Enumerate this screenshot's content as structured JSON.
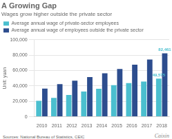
{
  "chart_data": {
    "type": "bar",
    "title": "A Growing Gap",
    "subtitle": "Wages grow higher outside the private sector",
    "ylabel": "Unit: yuan",
    "source": "Sources: National Bureau of Statistics, CEIC",
    "watermark": "Caixin",
    "categories": [
      "2010",
      "2011",
      "2012",
      "2013",
      "2014",
      "2015",
      "2016",
      "2017",
      "2018"
    ],
    "series": [
      {
        "name": "Average annual wage of private-sector employees",
        "color": "#4bbfcf",
        "values": [
          20759,
          24556,
          28241,
          32706,
          36390,
          40941,
          43724,
          45761,
          49575
        ]
      },
      {
        "name": "Average annual wage of employees outside the private sector",
        "color": "#2d4d8e",
        "values": [
          36539,
          42452,
          46769,
          51483,
          56339,
          62029,
          67569,
          74318,
          82461
        ]
      }
    ],
    "annotations": [
      {
        "text": "49,575",
        "category": "2018",
        "series": "Average annual wage of private-sector employees",
        "value": 49575,
        "color": "#4bbfcf"
      },
      {
        "text": "82,461",
        "category": "2018",
        "series": "Average annual wage of employees outside the private sector",
        "value": 82461,
        "color": "#4bbfcf"
      }
    ],
    "ylim": [
      0,
      100000
    ],
    "yticks": [
      0,
      {
        "value": 20000,
        "label": "20,000"
      },
      {
        "value": 40000,
        "label": "40,000"
      },
      {
        "value": 60000,
        "label": "60,000"
      },
      {
        "value": 80000,
        "label": "80,000"
      },
      {
        "value": 100000,
        "label": "100,000"
      }
    ],
    "grid": true,
    "legend": "top"
  }
}
